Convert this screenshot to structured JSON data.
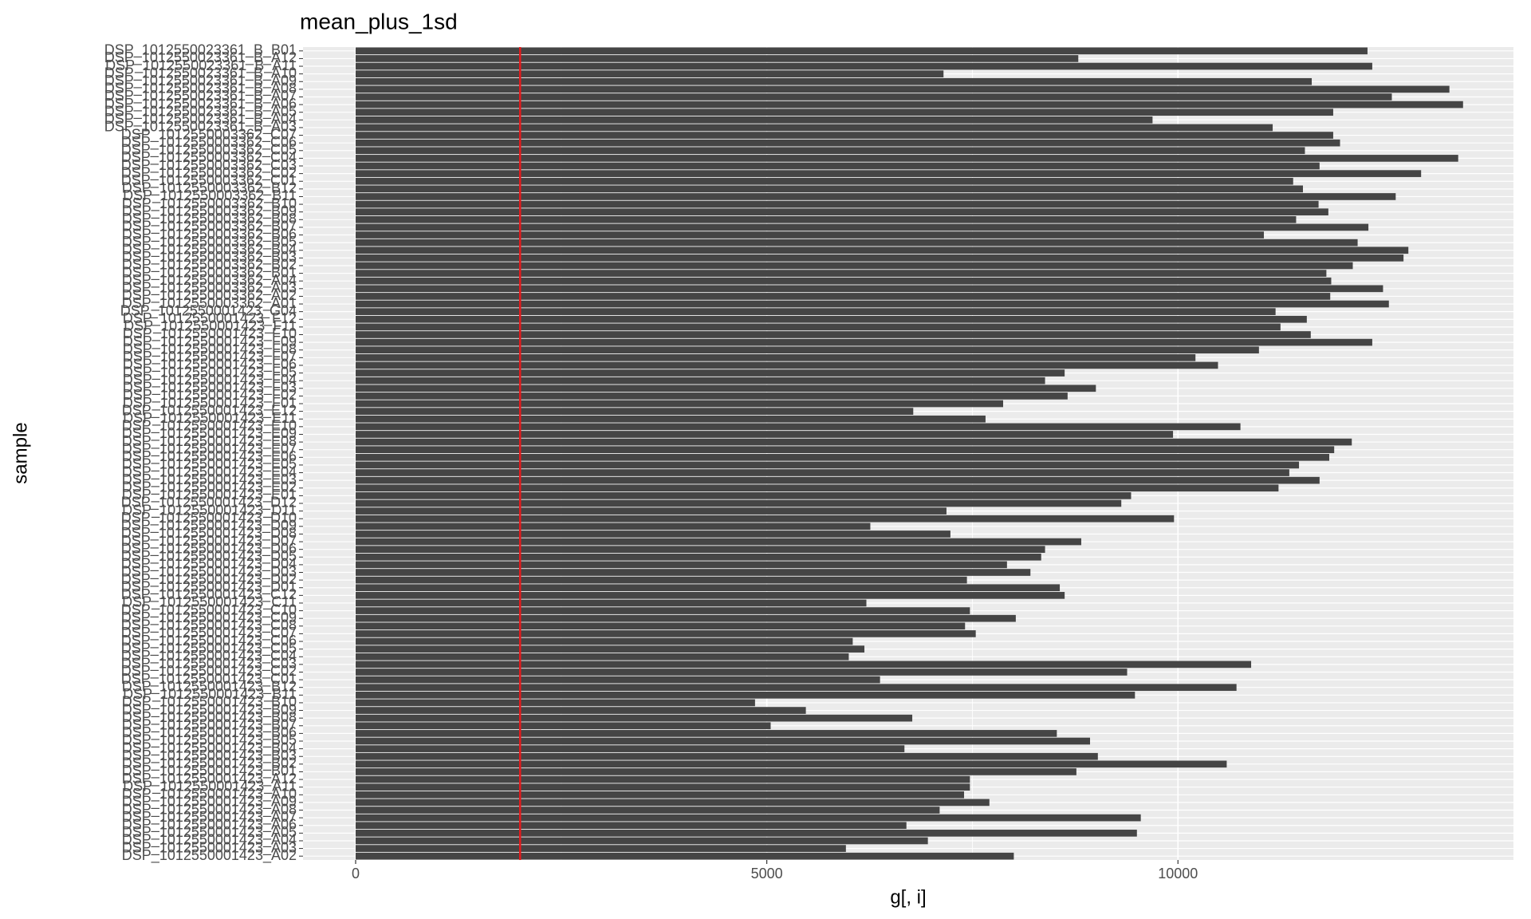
{
  "chart_data": {
    "type": "barh",
    "title": "mean_plus_1sd",
    "x_label": "g[, i]",
    "y_label": "sample",
    "categories": [
      "DSP_1012550023361_B_B01",
      "DSP_1012550023361_B_A12",
      "DSP_1012550023361_B_A11",
      "DSP_1012550023361_B_A10",
      "DSP_1012550023361_B_A09",
      "DSP_1012550023361_B_A08",
      "DSP_1012550023361_B_A07",
      "DSP_1012550023361_B_A06",
      "DSP_1012550023361_B_A05",
      "DSP_1012550023361_B_A04",
      "DSP_1012550023361_B_A03",
      "DSP_1012550003362_C07",
      "DSP_1012550003362_C06",
      "DSP_1012550003362_C05",
      "DSP_1012550003362_C04",
      "DSP_1012550003362_C03",
      "DSP_1012550003362_C02",
      "DSP_1012550003362_C01",
      "DSP_1012550003362_B12",
      "DSP_1012550003362_B11",
      "DSP_1012550003362_B10",
      "DSP_1012550003362_B09",
      "DSP_1012550003362_B08",
      "DSP_1012550003362_B07",
      "DSP_1012550003362_B06",
      "DSP_1012550003362_B05",
      "DSP_1012550003362_B04",
      "DSP_1012550003362_B03",
      "DSP_1012550003362_B02",
      "DSP_1012550003362_B01",
      "DSP_1012550003362_A04",
      "DSP_1012550003362_A03",
      "DSP_1012550003362_A02",
      "DSP_1012550003362_A01",
      "DSP_1012550001423_G04",
      "DSP_1012550001423_F12",
      "DSP_1012550001423_F11",
      "DSP_1012550001423_F10",
      "DSP_1012550001423_F09",
      "DSP_1012550001423_F08",
      "DSP_1012550001423_F07",
      "DSP_1012550001423_F06",
      "DSP_1012550001423_F05",
      "DSP_1012550001423_F04",
      "DSP_1012550001423_F03",
      "DSP_1012550001423_F02",
      "DSP_1012550001423_F01",
      "DSP_1012550001423_E12",
      "DSP_1012550001423_E11",
      "DSP_1012550001423_E10",
      "DSP_1012550001423_E09",
      "DSP_1012550001423_E08",
      "DSP_1012550001423_E07",
      "DSP_1012550001423_E06",
      "DSP_1012550001423_E05",
      "DSP_1012550001423_E04",
      "DSP_1012550001423_E03",
      "DSP_1012550001423_E02",
      "DSP_1012550001423_E01",
      "DSP_1012550001423_D12",
      "DSP_1012550001423_D11",
      "DSP_1012550001423_D10",
      "DSP_1012550001423_D09",
      "DSP_1012550001423_D08",
      "DSP_1012550001423_D07",
      "DSP_1012550001423_D06",
      "DSP_1012550001423_D05",
      "DSP_1012550001423_D04",
      "DSP_1012550001423_D03",
      "DSP_1012550001423_D02",
      "DSP_1012550001423_D01",
      "DSP_1012550001423_C12",
      "DSP_1012550001423_C11",
      "DSP_1012550001423_C10",
      "DSP_1012550001423_C09",
      "DSP_1012550001423_C08",
      "DSP_1012550001423_C07",
      "DSP_1012550001423_C06",
      "DSP_1012550001423_C05",
      "DSP_1012550001423_C04",
      "DSP_1012550001423_C03",
      "DSP_1012550001423_C02",
      "DSP_1012550001423_C01",
      "DSP_1012550001423_B12",
      "DSP_1012550001423_B11",
      "DSP_1012550001423_B10",
      "DSP_1012550001423_B09",
      "DSP_1012550001423_B08",
      "DSP_1012550001423_B07",
      "DSP_1012550001423_B06",
      "DSP_1012550001423_B05",
      "DSP_1012550001423_B04",
      "DSP_1012550001423_B03",
      "DSP_1012550001423_B02",
      "DSP_1012550001423_B01",
      "DSP_1012550001423_A12",
      "DSP_1012550001423_A11",
      "DSP_1012550001423_A10",
      "DSP_1012550001423_A09",
      "DSP_1012550001423_A08",
      "DSP_1012550001423_A07",
      "DSP_1012550001423_A06",
      "DSP_1012550001423_A05",
      "DSP_1012550001423_A04",
      "DSP_1012550001423_A03",
      "DSP_1012550001423_A02"
    ],
    "values": [
      12305,
      8788,
      12363,
      7149,
      11627,
      13301,
      12601,
      13467,
      11888,
      9691,
      11152,
      11888,
      11971,
      11544,
      13408,
      11722,
      12957,
      11401,
      11520,
      12648,
      11710,
      11829,
      11437,
      12316,
      11045,
      12185,
      12802,
      12743,
      12126,
      11805,
      11864,
      12494,
      11852,
      12565,
      11187,
      11567,
      11247,
      11615,
      12363,
      10985,
      10213,
      10487,
      8622,
      8384,
      9002,
      8658,
      7874,
      6781,
      7660,
      10760,
      9940,
      12114,
      11900,
      11840,
      11472,
      11354,
      11722,
      11223,
      9430,
      9311,
      7185,
      9952,
      6259,
      7233,
      8824,
      8384,
      8337,
      7921,
      8206,
      7434,
      8563,
      8622,
      6211,
      7470,
      8028,
      7411,
      7541,
      6045,
      6187,
      5997,
      10890,
      9382,
      6377,
      10712,
      9477,
      4857,
      5475,
      6769,
      5047,
      8527,
      8931,
      6674,
      9026,
      10593,
      8765,
      7470,
      7470,
      7399,
      7707,
      7102,
      9548,
      6698,
      9501,
      6959,
      5962,
      8004
    ],
    "color": "#454545",
    "xlim": [
      -640,
      14080
    ],
    "xticks": [
      0,
      5000,
      10000
    ],
    "grid": true,
    "vline": 2000,
    "vline_color": "#e41a1c"
  }
}
